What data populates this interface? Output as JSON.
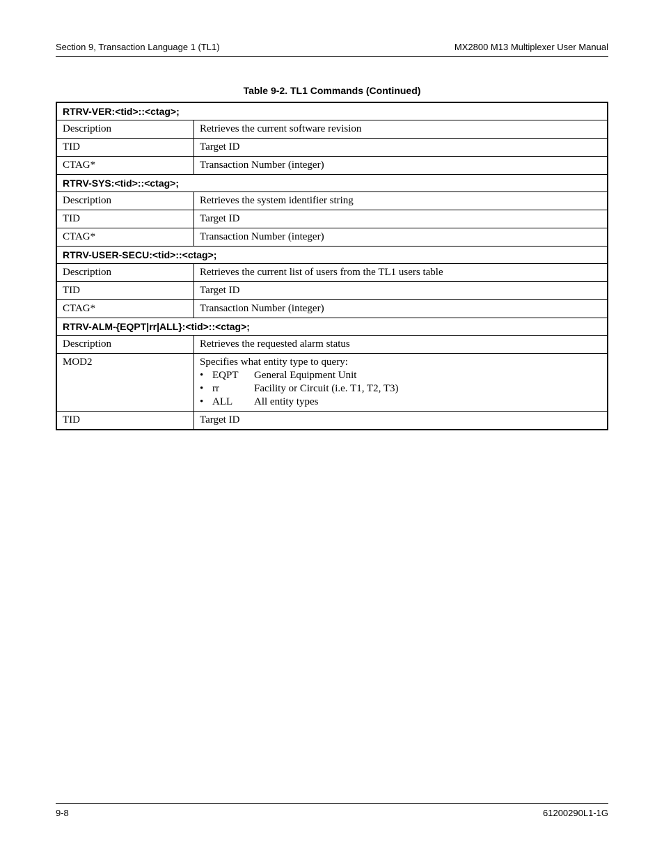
{
  "header": {
    "left": "Section 9, Transaction Language 1 (TL1)",
    "right": "MX2800 M13 Multiplexer User Manual"
  },
  "caption": "Table 9-2.  TL1 Commands (Continued)",
  "sections": [
    {
      "command": "RTRV-VER:<tid>::<ctag>;",
      "rows": [
        {
          "k": "Description",
          "v": "Retrieves the current software revision"
        },
        {
          "k": "TID",
          "v": "Target ID"
        },
        {
          "k": "CTAG*",
          "v": "Transaction Number (integer)"
        }
      ]
    },
    {
      "command": "RTRV-SYS:<tid>::<ctag>;",
      "rows": [
        {
          "k": "Description",
          "v": "Retrieves the system identifier string"
        },
        {
          "k": "TID",
          "v": "Target ID"
        },
        {
          "k": "CTAG*",
          "v": "Transaction Number (integer)"
        }
      ]
    },
    {
      "command": "RTRV-USER-SECU:<tid>::<ctag>;",
      "rows": [
        {
          "k": "Description",
          "v": "Retrieves the current list of users from the TL1 users table"
        },
        {
          "k": "TID",
          "v": "Target ID"
        },
        {
          "k": "CTAG*",
          "v": "Transaction Number (integer)"
        }
      ]
    },
    {
      "command": "RTRV-ALM-{EQPT|rr|ALL}:<tid>::<ctag>;",
      "rows": [
        {
          "k": "Description",
          "v": "Retrieves the requested alarm status"
        },
        {
          "k": "MOD2",
          "v": "Specifies what entity type to query:",
          "bullets": [
            {
              "key": "EQPT",
              "desc": "General Equipment Unit"
            },
            {
              "key": "rr",
              "desc": "Facility or Circuit (i.e. T1, T2, T3)"
            },
            {
              "key": "ALL",
              "desc": "All entity types"
            }
          ]
        },
        {
          "k": "TID",
          "v": "Target ID"
        }
      ]
    }
  ],
  "footer": {
    "left": "9-8",
    "right": "61200290L1-1G"
  }
}
